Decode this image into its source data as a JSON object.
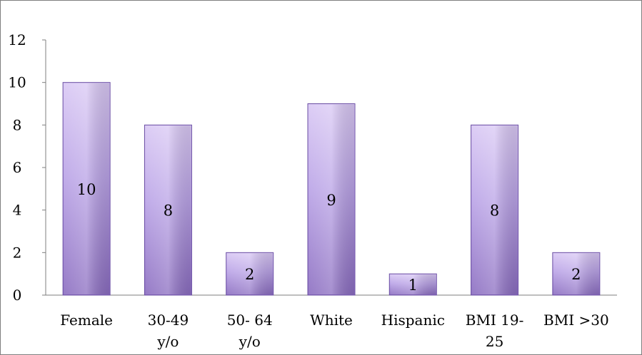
{
  "chart_data": {
    "type": "bar",
    "title": "",
    "xlabel": "",
    "ylabel": "",
    "categories": [
      [
        "Female"
      ],
      [
        "30-49",
        "y/o"
      ],
      [
        "50- 64",
        "y/o"
      ],
      [
        "White"
      ],
      [
        "Hispanic"
      ],
      [
        "BMI 19-",
        "25"
      ],
      [
        "BMI >30"
      ]
    ],
    "values": [
      10,
      8,
      2,
      9,
      1,
      8,
      2
    ],
    "data_labels": [
      "10",
      "8",
      "2",
      "9",
      "1",
      "8",
      "2"
    ],
    "ylim": [
      0,
      12
    ],
    "yticks": [
      0,
      2,
      4,
      6,
      8,
      10,
      12
    ],
    "ytick_labels": [
      "0",
      "2",
      "4",
      "6",
      "8",
      "10",
      "12"
    ],
    "grid": false,
    "legend": "none",
    "colors": {
      "bar_top": "#d9c8f4",
      "bar_bottom": "#8a6cc0",
      "bar_edge": "#6b4fa3",
      "axis": "#7f7f7f"
    }
  }
}
